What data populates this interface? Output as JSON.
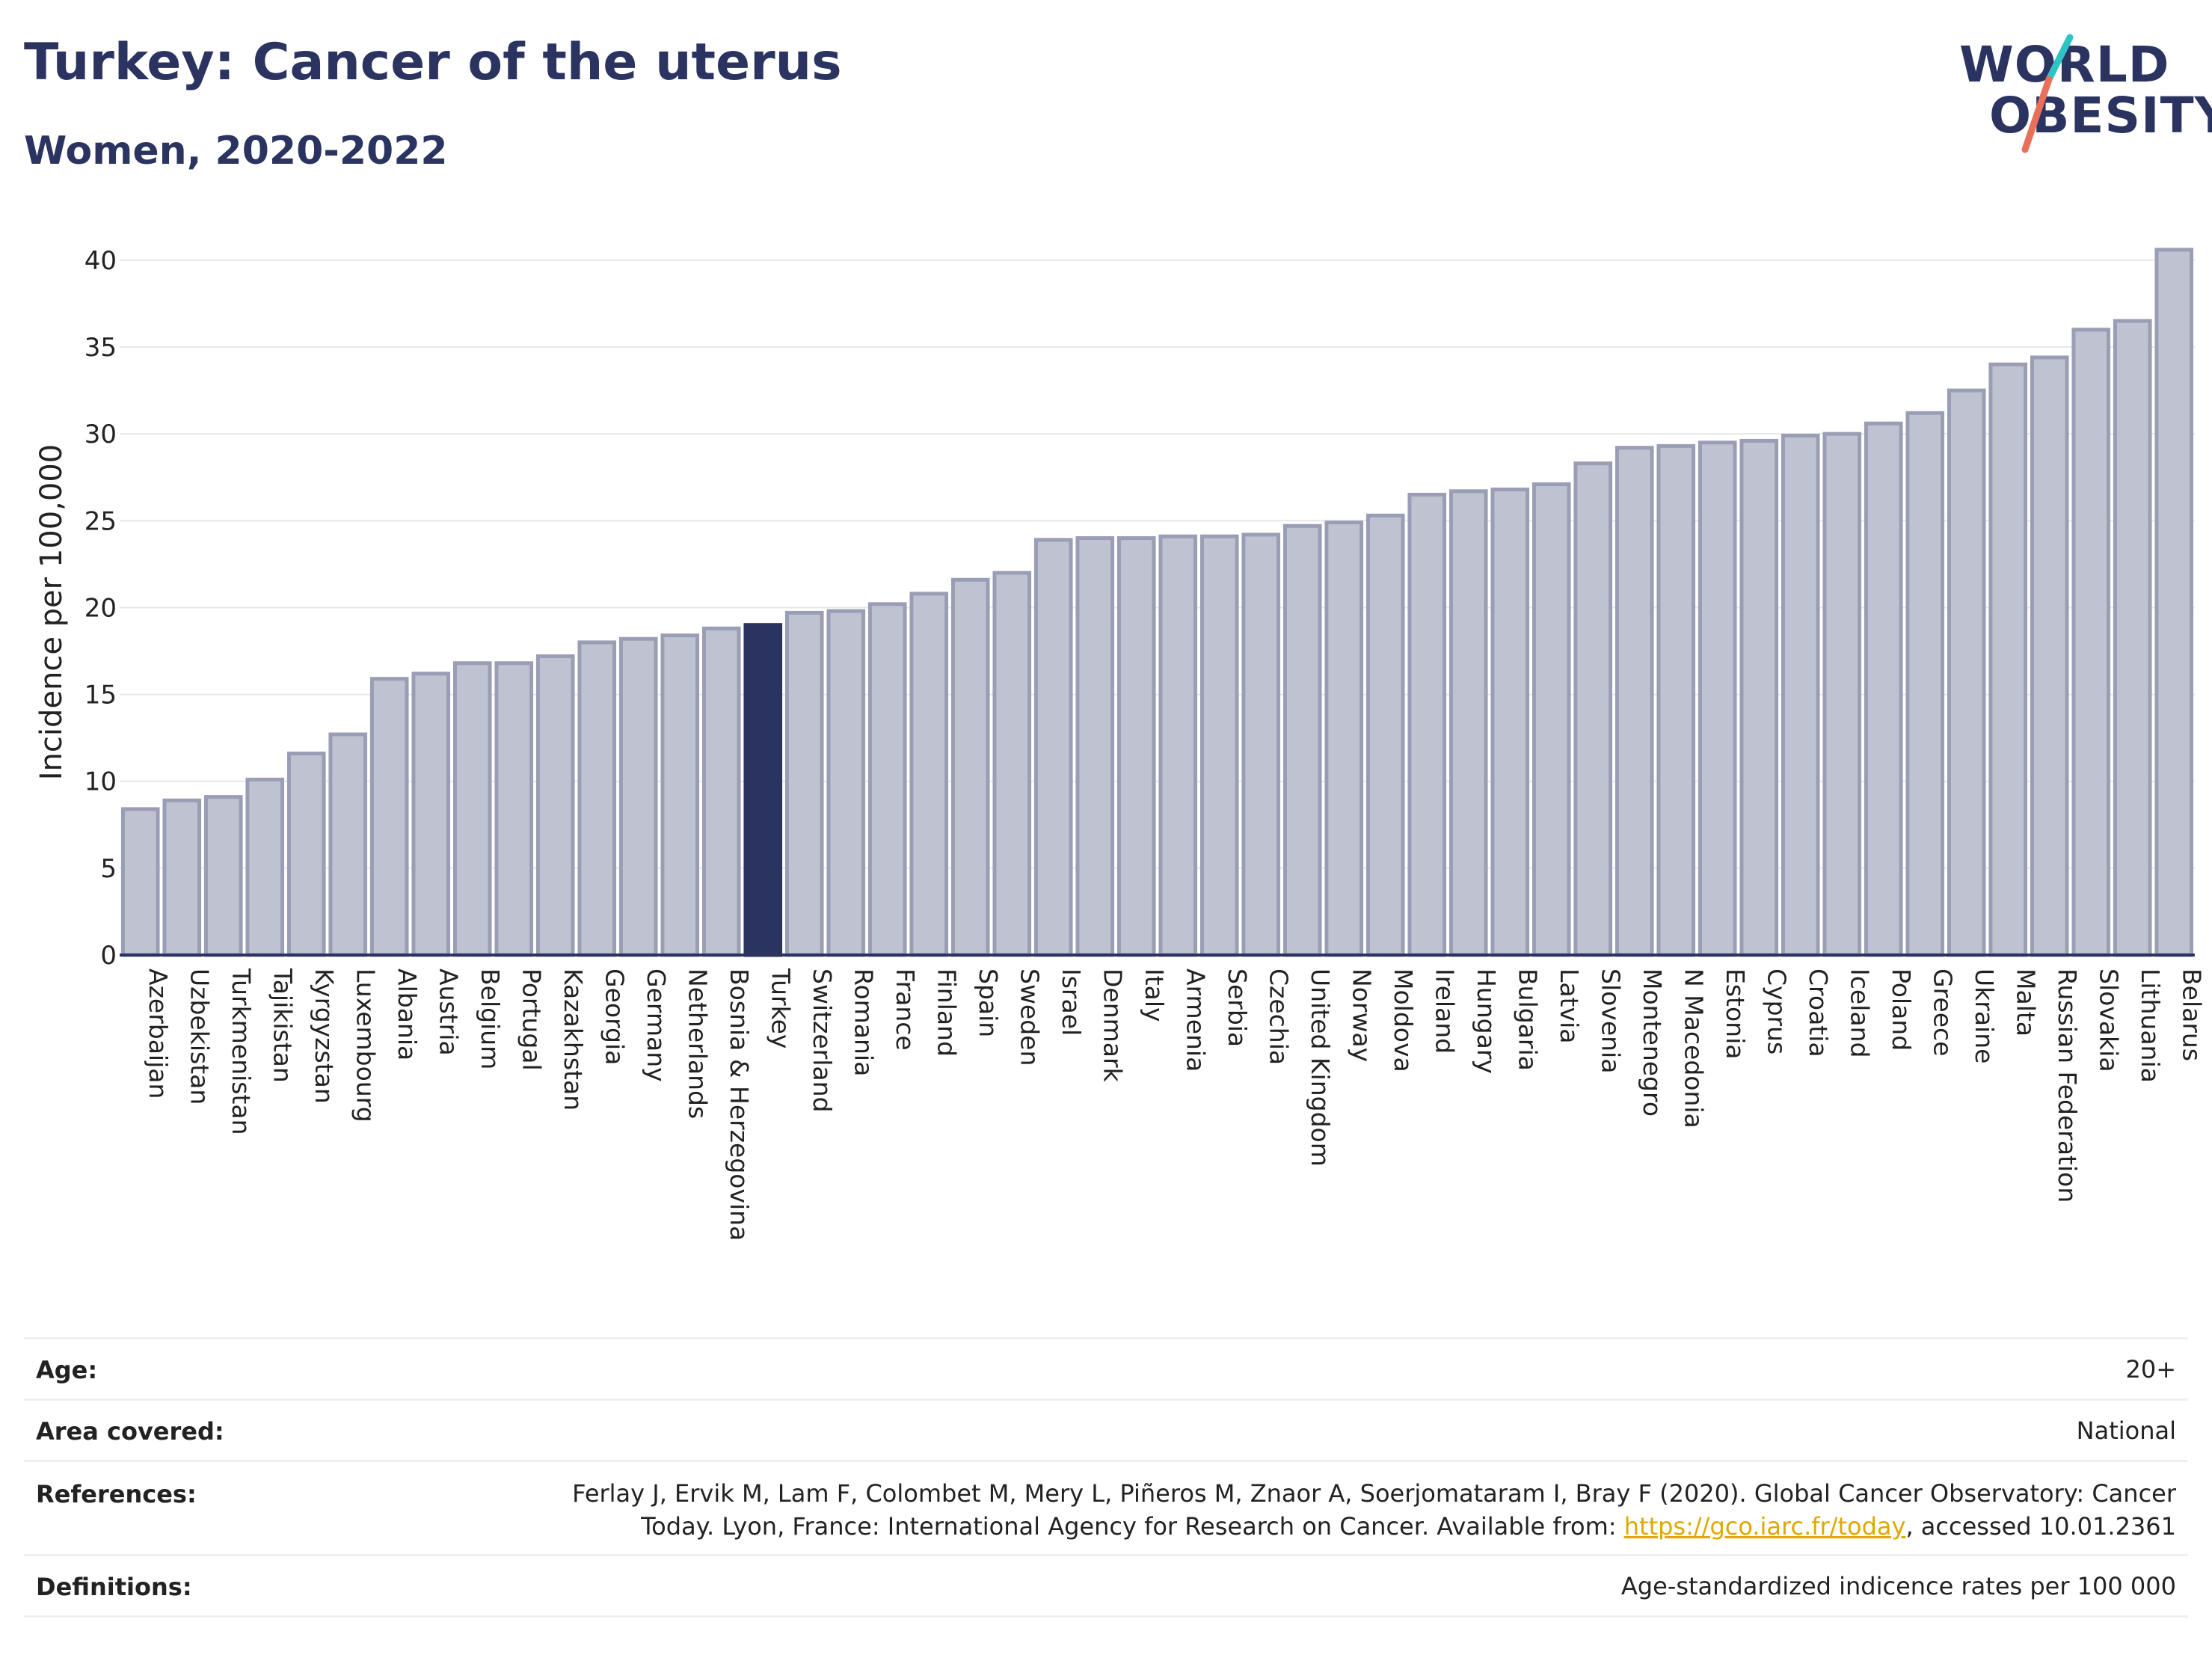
{
  "header": {
    "title": "Turkey: Cancer of the uterus",
    "subtitle": "Women, 2020-2022"
  },
  "logo": {
    "line1": "WORLD",
    "line2": "OBESITY",
    "accent_colors": [
      "#2ec4c6",
      "#e8705a"
    ]
  },
  "colors": {
    "highlight": "#2b3460",
    "bar_fill": "#bfc2d0",
    "bar_stroke": "#9a9eb5",
    "grid": "#e6e7ea",
    "axis": "#2b3460",
    "link": "#e0a800"
  },
  "chart_data": {
    "type": "bar",
    "ylabel": "Incidence per 100,000",
    "ylim": [
      0,
      40
    ],
    "yticks": [
      0,
      5,
      10,
      15,
      20,
      25,
      30,
      35,
      40
    ],
    "grid": true,
    "highlight": "Turkey",
    "categories": [
      "Azerbaijan",
      "Uzbekistan",
      "Turkmenistan",
      "Tajikistan",
      "Kyrgyzstan",
      "Luxembourg",
      "Albania",
      "Austria",
      "Belgium",
      "Portugal",
      "Kazakhstan",
      "Georgia",
      "Germany",
      "Netherlands",
      "Bosnia & Herzegovina",
      "Turkey",
      "Switzerland",
      "Romania",
      "France",
      "Finland",
      "Spain",
      "Sweden",
      "Israel",
      "Denmark",
      "Italy",
      "Armenia",
      "Serbia",
      "Czechia",
      "United Kingdom",
      "Norway",
      "Moldova",
      "Ireland",
      "Hungary",
      "Bulgaria",
      "Latvia",
      "Slovenia",
      "Montenegro",
      "N Macedonia",
      "Estonia",
      "Cyprus",
      "Croatia",
      "Iceland",
      "Poland",
      "Greece",
      "Ukraine",
      "Malta",
      "Russian Federation",
      "Slovakia",
      "Lithuania",
      "Belarus"
    ],
    "values": [
      8.4,
      8.9,
      9.1,
      10.1,
      11.6,
      12.7,
      15.9,
      16.2,
      16.8,
      16.8,
      17.2,
      18.0,
      18.2,
      18.4,
      18.8,
      19.0,
      19.7,
      19.8,
      20.2,
      20.8,
      21.6,
      22.0,
      23.9,
      24.0,
      24.0,
      24.1,
      24.1,
      24.2,
      24.7,
      24.9,
      25.3,
      26.5,
      26.7,
      26.8,
      27.1,
      28.3,
      29.2,
      29.3,
      29.5,
      29.6,
      29.9,
      30.0,
      30.6,
      31.2,
      32.5,
      34.0,
      34.4,
      36.0,
      36.5,
      40.6
    ]
  },
  "info": {
    "age": {
      "label": "Age:",
      "value": "20+"
    },
    "area": {
      "label": "Area covered:",
      "value": "National"
    },
    "references": {
      "label": "References:",
      "line1": "Ferlay J, Ervik M, Lam F, Colombet M, Mery L, Piñeros M, Znaor A, Soerjomataram I, Bray F (2020). Global Cancer Observatory: Cancer",
      "line2_pre": "Today. Lyon, France: International Agency for Research on Cancer. Available from: ",
      "link": "https://gco.iarc.fr/today",
      "line2_post": ", accessed 10.01.2361"
    },
    "definitions": {
      "label": "Definitions:",
      "value": "Age-standardized indicence rates per 100 000"
    }
  }
}
